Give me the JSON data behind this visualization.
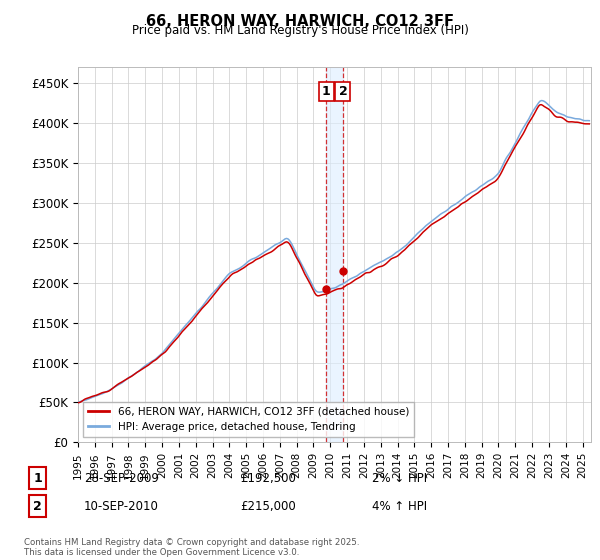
{
  "title": "66, HERON WAY, HARWICH, CO12 3FF",
  "subtitle": "Price paid vs. HM Land Registry's House Price Index (HPI)",
  "ylabel_ticks": [
    "£0",
    "£50K",
    "£100K",
    "£150K",
    "£200K",
    "£250K",
    "£300K",
    "£350K",
    "£400K",
    "£450K"
  ],
  "ytick_vals": [
    0,
    50000,
    100000,
    150000,
    200000,
    250000,
    300000,
    350000,
    400000,
    450000
  ],
  "ylim": [
    0,
    470000
  ],
  "xlim_start": 1995.0,
  "xlim_end": 2025.5,
  "legend_red": "66, HERON WAY, HARWICH, CO12 3FF (detached house)",
  "legend_blue": "HPI: Average price, detached house, Tendring",
  "marker1_x": 2009.75,
  "marker2_x": 2010.75,
  "marker1_y": 192500,
  "marker2_y": 215000,
  "footer": "Contains HM Land Registry data © Crown copyright and database right 2025.\nThis data is licensed under the Open Government Licence v3.0.",
  "red_color": "#cc0000",
  "blue_color": "#7aaadd",
  "bg_color": "#ffffff",
  "grid_color": "#cccccc",
  "shade_color": "#ddeeff"
}
